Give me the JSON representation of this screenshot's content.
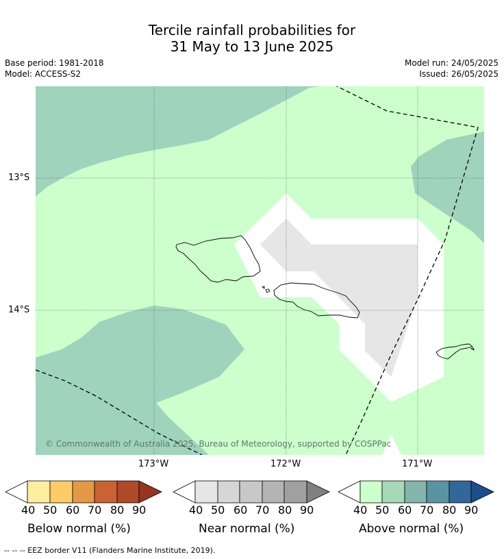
{
  "title": {
    "line1": "Tercile rainfall probabilities for",
    "line2": "31 May to 13 June 2025"
  },
  "info": {
    "base_period": "Base period: 1981-2018",
    "model": "Model: ACCESS-S2",
    "model_run": "Model run: 24/05/2025",
    "issued": "Issued: 26/05/2025"
  },
  "map": {
    "lat_labels": [
      "13°S",
      "14°S"
    ],
    "lon_labels": [
      "173°W",
      "172°W",
      "171°W"
    ],
    "copyright": "© Commonwealth of Australia 2025, Bureau of Meteorology, supported by COSPPac",
    "colors": {
      "above_40": "#ccffcc",
      "above_50": "#9fd3bc",
      "near_40": "#ffffff",
      "near_50": "#e6e6e6",
      "land_outline": "#000000"
    }
  },
  "colorbars": [
    {
      "label": "Below normal (%)",
      "ticks": [
        "40",
        "50",
        "60",
        "70",
        "80",
        "90"
      ],
      "colors": [
        "#ffffff",
        "#ffeda0",
        "#fecc66",
        "#e39946",
        "#cb6233",
        "#b04a29",
        "#993322"
      ]
    },
    {
      "label": "Near normal (%)",
      "ticks": [
        "40",
        "50",
        "60",
        "70",
        "80",
        "90"
      ],
      "colors": [
        "#ffffff",
        "#e6e6e6",
        "#d6d6d6",
        "#c8c8c8",
        "#b4b4b4",
        "#a0a0a0",
        "#808080"
      ]
    },
    {
      "label": "Above normal (%)",
      "ticks": [
        "40",
        "50",
        "60",
        "70",
        "80",
        "90"
      ],
      "colors": [
        "#ffffff",
        "#ccffcc",
        "#a6d9b8",
        "#83b5ab",
        "#5a94a2",
        "#336699",
        "#1a4f8c"
      ]
    }
  ],
  "footer": "--  --  -- EEZ border V11 (Flanders Marine Institute, 2019)."
}
